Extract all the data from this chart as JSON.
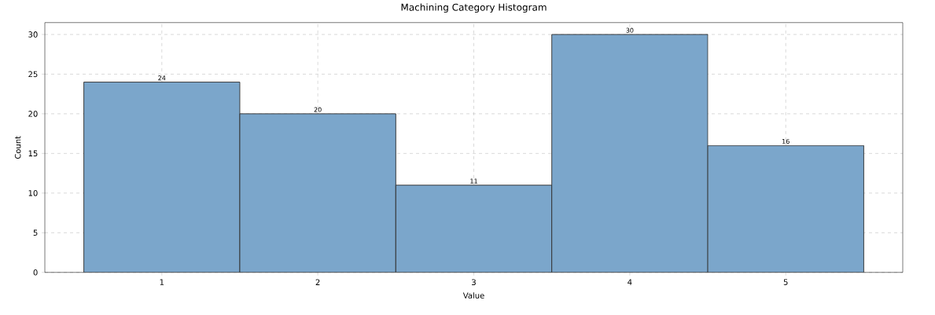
{
  "chart_data": {
    "type": "histogram",
    "title": "Machining Category Histogram",
    "xlabel": "Value",
    "ylabel": "Count",
    "bins": [
      0.5,
      1.5,
      2.5,
      3.5,
      4.5,
      5.5
    ],
    "values": [
      24,
      20,
      11,
      30,
      16
    ],
    "color": "#7ba6cb",
    "xlim": [
      0.25,
      5.75
    ],
    "ylim": [
      0,
      31.5
    ],
    "xticks": [
      1,
      2,
      3,
      4,
      5
    ],
    "yticks": [
      0,
      5,
      10,
      15,
      20,
      25,
      30
    ],
    "grid": true,
    "data_labels": true
  }
}
